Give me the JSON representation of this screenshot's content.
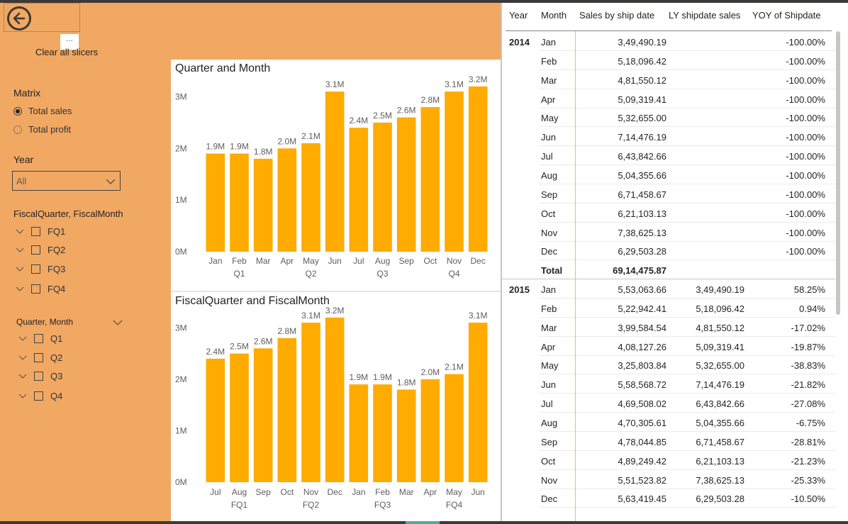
{
  "nav": {
    "clear_label": "Clear all slicers",
    "more_label": "..."
  },
  "matrix_slicer": {
    "title": "Matrix",
    "options": [
      {
        "label": "Total sales",
        "selected": true
      },
      {
        "label": "Total profit",
        "selected": false
      }
    ]
  },
  "year_slicer": {
    "title": "Year",
    "value": "All"
  },
  "fiscal_slicer": {
    "title": "FiscalQuarter, FiscalMonth",
    "items": [
      {
        "label": "FQ1"
      },
      {
        "label": "FQ2"
      },
      {
        "label": "FQ3"
      },
      {
        "label": "FQ4"
      }
    ]
  },
  "quarter_slicer": {
    "title": "Quarter, Month",
    "items": [
      {
        "label": "Q1"
      },
      {
        "label": "Q2"
      },
      {
        "label": "Q3"
      },
      {
        "label": "Q4"
      }
    ]
  },
  "colors": {
    "bar": "#ffab00",
    "panel": "#f1a862"
  },
  "chart_data": [
    {
      "type": "bar",
      "title": "Quarter and Month",
      "categories": [
        "Jan",
        "Feb",
        "Mar",
        "Apr",
        "May",
        "Jun",
        "Jul",
        "Aug",
        "Sep",
        "Oct",
        "Nov",
        "Dec"
      ],
      "groups": [
        "Q1",
        "Q2",
        "Q3",
        "Q4"
      ],
      "values": [
        1.9,
        1.9,
        1.8,
        2.0,
        2.1,
        3.1,
        2.4,
        2.5,
        2.6,
        2.8,
        3.1,
        3.2
      ],
      "data_labels": [
        "1.9M",
        "1.9M",
        "1.8M",
        "2.0M",
        "2.1M",
        "3.1M",
        "2.4M",
        "2.5M",
        "2.6M",
        "2.8M",
        "3.1M",
        "3.2M"
      ],
      "ytick_labels": [
        "0M",
        "1M",
        "2M",
        "3M"
      ],
      "ylim": [
        0,
        3.5
      ],
      "grid": false
    },
    {
      "type": "bar",
      "title": "FiscalQuarter and FiscalMonth",
      "categories": [
        "Jul",
        "Aug",
        "Sep",
        "Oct",
        "Nov",
        "Dec",
        "Jan",
        "Feb",
        "Mar",
        "Apr",
        "May",
        "Jun"
      ],
      "groups": [
        "FQ1",
        "FQ2",
        "FQ3",
        "FQ4"
      ],
      "values": [
        2.4,
        2.5,
        2.6,
        2.8,
        3.1,
        3.2,
        1.9,
        1.9,
        1.8,
        2.0,
        2.1,
        3.1
      ],
      "data_labels": [
        "2.4M",
        "2.5M",
        "2.6M",
        "2.8M",
        "3.1M",
        "3.2M",
        "1.9M",
        "1.9M",
        "1.8M",
        "2.0M",
        "2.1M",
        "3.1M"
      ],
      "ytick_labels": [
        "0M",
        "1M",
        "2M",
        "3M"
      ],
      "ylim": [
        0,
        3.5
      ],
      "grid": false
    }
  ],
  "matrix": {
    "headers": [
      "Year",
      "Month",
      "Sales by ship date",
      "LY shipdate sales",
      "YOY of Shipdate"
    ],
    "rows": [
      {
        "year": "2014",
        "month": "Jan",
        "sales": "3,49,490.19",
        "ly": "",
        "yoy": "-100.00%"
      },
      {
        "year": "",
        "month": "Feb",
        "sales": "5,18,096.42",
        "ly": "",
        "yoy": "-100.00%"
      },
      {
        "year": "",
        "month": "Mar",
        "sales": "4,81,550.12",
        "ly": "",
        "yoy": "-100.00%"
      },
      {
        "year": "",
        "month": "Apr",
        "sales": "5,09,319.41",
        "ly": "",
        "yoy": "-100.00%"
      },
      {
        "year": "",
        "month": "May",
        "sales": "5,32,655.00",
        "ly": "",
        "yoy": "-100.00%"
      },
      {
        "year": "",
        "month": "Jun",
        "sales": "7,14,476.19",
        "ly": "",
        "yoy": "-100.00%"
      },
      {
        "year": "",
        "month": "Jul",
        "sales": "6,43,842.66",
        "ly": "",
        "yoy": "-100.00%"
      },
      {
        "year": "",
        "month": "Aug",
        "sales": "5,04,355.66",
        "ly": "",
        "yoy": "-100.00%"
      },
      {
        "year": "",
        "month": "Sep",
        "sales": "6,71,458.67",
        "ly": "",
        "yoy": "-100.00%"
      },
      {
        "year": "",
        "month": "Oct",
        "sales": "6,21,103.13",
        "ly": "",
        "yoy": "-100.00%"
      },
      {
        "year": "",
        "month": "Nov",
        "sales": "7,38,625.13",
        "ly": "",
        "yoy": "-100.00%"
      },
      {
        "year": "",
        "month": "Dec",
        "sales": "6,29,503.28",
        "ly": "",
        "yoy": "-100.00%"
      },
      {
        "year": "",
        "month": "Total",
        "sales": "69,14,475.87",
        "ly": "",
        "yoy": "",
        "total": true
      },
      {
        "year": "2015",
        "month": "Jan",
        "sales": "5,53,063.66",
        "ly": "3,49,490.19",
        "yoy": "58.25%"
      },
      {
        "year": "",
        "month": "Feb",
        "sales": "5,22,942.41",
        "ly": "5,18,096.42",
        "yoy": "0.94%"
      },
      {
        "year": "",
        "month": "Mar",
        "sales": "3,99,584.54",
        "ly": "4,81,550.12",
        "yoy": "-17.02%"
      },
      {
        "year": "",
        "month": "Apr",
        "sales": "4,08,127.26",
        "ly": "5,09,319.41",
        "yoy": "-19.87%"
      },
      {
        "year": "",
        "month": "May",
        "sales": "3,25,803.84",
        "ly": "5,32,655.00",
        "yoy": "-38.83%"
      },
      {
        "year": "",
        "month": "Jun",
        "sales": "5,58,568.72",
        "ly": "7,14,476.19",
        "yoy": "-21.82%"
      },
      {
        "year": "",
        "month": "Jul",
        "sales": "4,69,508.02",
        "ly": "6,43,842.66",
        "yoy": "-27.08%"
      },
      {
        "year": "",
        "month": "Aug",
        "sales": "4,70,305.61",
        "ly": "5,04,355.66",
        "yoy": "-6.75%"
      },
      {
        "year": "",
        "month": "Sep",
        "sales": "4,78,044.85",
        "ly": "6,71,458.67",
        "yoy": "-28.81%"
      },
      {
        "year": "",
        "month": "Oct",
        "sales": "4,89,249.42",
        "ly": "6,21,103.13",
        "yoy": "-21.23%"
      },
      {
        "year": "",
        "month": "Nov",
        "sales": "5,51,523.82",
        "ly": "7,38,625.13",
        "yoy": "-25.33%"
      },
      {
        "year": "",
        "month": "Dec",
        "sales": "5,63,419.45",
        "ly": "6,29,503.28",
        "yoy": "-10.50%"
      }
    ]
  }
}
